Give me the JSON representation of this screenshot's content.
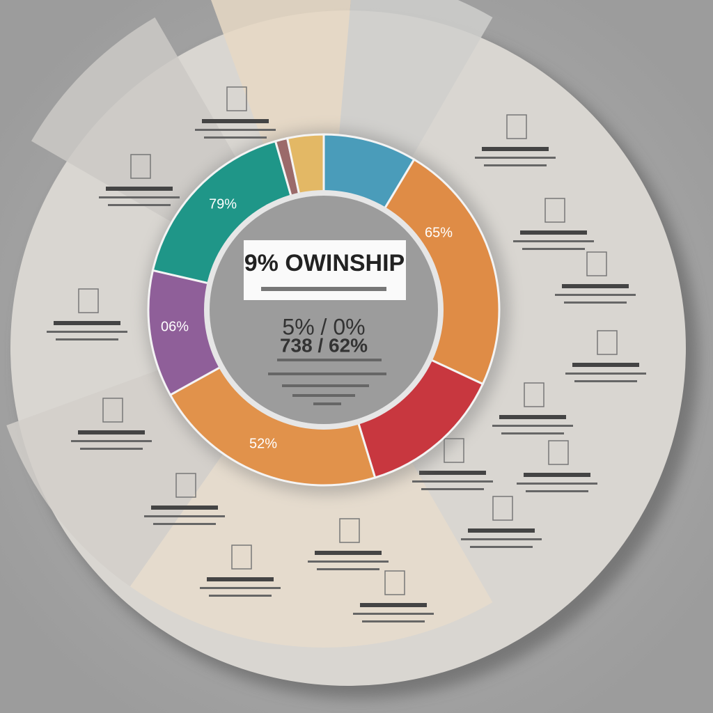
{
  "header": {
    "title": "9% OWINSHIP"
  },
  "center": {
    "lines": [
      "5% / 0%",
      "738 / 62%"
    ]
  },
  "segment_labels": [
    "79%",
    "65%",
    "06%",
    "52%"
  ]
}
